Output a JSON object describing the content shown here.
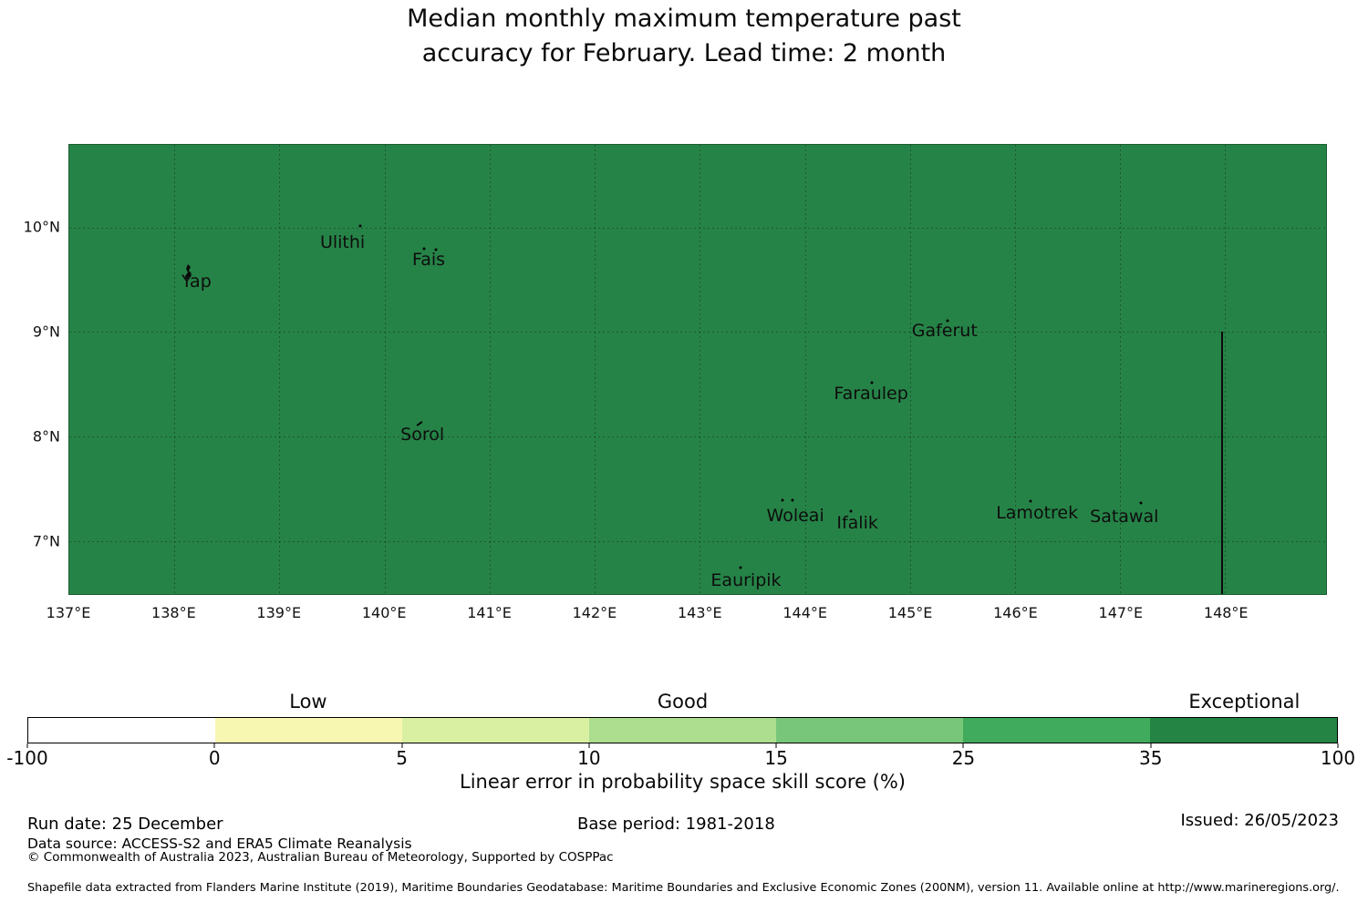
{
  "title": {
    "line1": "Median monthly maximum temperature past",
    "line2": "accuracy for February. Lead time: 2 month"
  },
  "map": {
    "fill_color": "#268347",
    "boundary_line": {
      "lon": 147.96,
      "lat_from": 9.0,
      "lat_to": 6.49
    }
  },
  "colorbar": {
    "axis_label": "Linear error in probability space skill score (%)"
  },
  "footer": {
    "run_date": "Run date: 25 December",
    "base_period": "Base period: 1981-2018",
    "issued": "Issued: 26/05/2023",
    "data_source": "Data source: ACCESS-S2 and ERA5 Climate Reanalysis",
    "copyright": "© Commonwealth of Australia 2023, Australian Bureau of Meteorology, Supported by COSPPac",
    "fine_print": "Shapefile data extracted from Flanders Marine Institute (2019), Maritime Boundaries Geodatabase: Maritime Boundaries and Exclusive Economic Zones (200NM), version 11. Available online at http://www.marineregions.org/."
  },
  "chart_data": {
    "type": "heatmap",
    "subtype": "choropleth-map",
    "title": "Median monthly maximum temperature past accuracy for February. Lead time: 2 month",
    "extent": {
      "lon": [
        137.0,
        148.96
      ],
      "lat": [
        6.49,
        10.79
      ]
    },
    "lon_ticks": [
      {
        "value": 137,
        "label": "137°E"
      },
      {
        "value": 138,
        "label": "138°E"
      },
      {
        "value": 139,
        "label": "139°E"
      },
      {
        "value": 140,
        "label": "140°E"
      },
      {
        "value": 141,
        "label": "141°E"
      },
      {
        "value": 142,
        "label": "142°E"
      },
      {
        "value": 143,
        "label": "143°E"
      },
      {
        "value": 144,
        "label": "144°E"
      },
      {
        "value": 145,
        "label": "145°E"
      },
      {
        "value": 146,
        "label": "146°E"
      },
      {
        "value": 147,
        "label": "147°E"
      },
      {
        "value": 148,
        "label": "148°E"
      }
    ],
    "lat_ticks": [
      {
        "value": 10,
        "label": "10°N"
      },
      {
        "value": 9,
        "label": "9°N"
      },
      {
        "value": 8,
        "label": "8°N"
      },
      {
        "value": 7,
        "label": "7°N"
      }
    ],
    "grid": true,
    "scale": {
      "label": "Linear error in probability space skill score (%)",
      "bounds": [
        -100,
        0,
        5,
        10,
        15,
        25,
        35,
        100
      ],
      "bound_labels": [
        "-100",
        "0",
        "5",
        "10",
        "15",
        "25",
        "35",
        "100"
      ],
      "colors": [
        "#ffffff",
        "#f7f7b2",
        "#d9f0a3",
        "#addd8e",
        "#78c679",
        "#41ab5d",
        "#238443"
      ],
      "category_labels": [
        {
          "label": "Low",
          "segment_index": 1
        },
        {
          "label": "Good",
          "segment_index": 3
        },
        {
          "label": "Exceptional",
          "segment_index": 6
        }
      ]
    },
    "map_value": {
      "category": "Exceptional",
      "range": "35-100",
      "fill_color": "#268347"
    },
    "islands": [
      {
        "name": "Yap",
        "label": [
          138.21,
          9.48
        ],
        "marker": "islet",
        "dots": []
      },
      {
        "name": "Ulithi",
        "label": [
          139.6,
          9.86
        ],
        "dots": [
          [
            139.77,
            10.01
          ]
        ]
      },
      {
        "name": "Fais",
        "label": [
          140.42,
          9.69
        ],
        "dots": [
          [
            140.38,
            9.8
          ],
          [
            140.49,
            9.79
          ]
        ]
      },
      {
        "name": "Sorol",
        "label": [
          140.36,
          8.02
        ],
        "marker": "tick",
        "dots": [],
        "tick_pos": [
          140.33,
          8.12
        ]
      },
      {
        "name": "Gaferut",
        "label": [
          145.33,
          9.01
        ],
        "dots": [
          [
            145.36,
            9.11
          ]
        ]
      },
      {
        "name": "Faraulep",
        "label": [
          144.63,
          8.41
        ],
        "dots": [
          [
            144.64,
            8.51
          ]
        ]
      },
      {
        "name": "Woleai",
        "label": [
          143.91,
          7.24
        ],
        "dots": [
          [
            143.79,
            7.39
          ],
          [
            143.88,
            7.39
          ]
        ]
      },
      {
        "name": "Ifalik",
        "label": [
          144.5,
          7.17
        ],
        "dots": [
          [
            144.44,
            7.28
          ]
        ]
      },
      {
        "name": "Lamotrek",
        "label": [
          146.21,
          7.27
        ],
        "dots": [
          [
            146.15,
            7.38
          ]
        ]
      },
      {
        "name": "Satawal",
        "label": [
          147.04,
          7.23
        ],
        "dots": [
          [
            147.2,
            7.36
          ]
        ]
      },
      {
        "name": "Eauripik",
        "label": [
          143.44,
          6.62
        ],
        "dots": [
          [
            143.39,
            6.74
          ]
        ]
      }
    ],
    "islet_marker_pos": [
      138.15,
      9.55
    ],
    "legend_position": "bottom"
  }
}
